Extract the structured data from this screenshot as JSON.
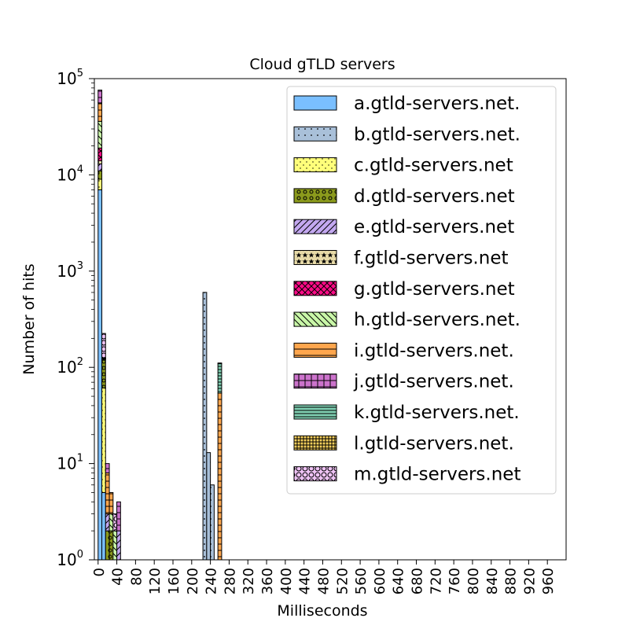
{
  "chart_data": {
    "type": "bar",
    "title": "Cloud gTLD servers",
    "xlabel": "Milliseconds",
    "ylabel": "Number of hits",
    "yscale": "log",
    "ylim": [
      1,
      100000
    ],
    "xlim": [
      -8,
      1000
    ],
    "bin_width": 8,
    "x_ticks": [
      "0",
      "40",
      "80",
      "120",
      "160",
      "200",
      "240",
      "280",
      "320",
      "360",
      "400",
      "440",
      "480",
      "520",
      "560",
      "600",
      "640",
      "680",
      "720",
      "760",
      "800",
      "840",
      "880",
      "920",
      "960"
    ],
    "y_ticks": [
      {
        "base": "10",
        "exp": "0"
      },
      {
        "base": "10",
        "exp": "1"
      },
      {
        "base": "10",
        "exp": "2"
      },
      {
        "base": "10",
        "exp": "3"
      },
      {
        "base": "10",
        "exp": "4"
      },
      {
        "base": "10",
        "exp": "5"
      }
    ],
    "grid": false,
    "stacked": true,
    "legend_position": "top-right",
    "series": [
      {
        "name": "a.gtld-servers.net.",
        "color": "#7abfff",
        "pattern": "none",
        "points": [
          {
            "x": 0,
            "value": 7000
          },
          {
            "x": 8,
            "value": 4
          }
        ]
      },
      {
        "name": "b.gtld-servers.net.",
        "color": "#a9c0d9",
        "pattern": "dots-sparse",
        "points": [
          {
            "x": 224,
            "value": 600
          },
          {
            "x": 232,
            "value": 12
          },
          {
            "x": 240,
            "value": 5
          }
        ]
      },
      {
        "name": "c.gtld-servers.net",
        "color": "#ffff7a",
        "pattern": "dots-dense",
        "points": [
          {
            "x": 0,
            "value": 2000
          },
          {
            "x": 8,
            "value": 56
          }
        ]
      },
      {
        "name": "d.gtld-servers.net",
        "color": "#8b9a1c",
        "pattern": "circles-small",
        "points": [
          {
            "x": 0,
            "value": 2000
          },
          {
            "x": 8,
            "value": 60
          },
          {
            "x": 16,
            "value": 1
          },
          {
            "x": 24,
            "value": 1
          }
        ]
      },
      {
        "name": "e.gtld-servers.net",
        "color": "#c3a8f0",
        "pattern": "diagonal-forward",
        "points": [
          {
            "x": 0,
            "value": 2000
          },
          {
            "x": 16,
            "value": 1
          },
          {
            "x": 40,
            "value": 1
          }
        ]
      },
      {
        "name": "f.gtld-servers.net",
        "color": "#e8dba8",
        "pattern": "stars",
        "points": [
          {
            "x": 0,
            "value": 1000
          },
          {
            "x": 8,
            "value": 1
          }
        ]
      },
      {
        "name": "g.gtld-servers.net",
        "color": "#ff0a87",
        "pattern": "cross",
        "points": [
          {
            "x": 0,
            "value": 5000
          }
        ]
      },
      {
        "name": "h.gtld-servers.net.",
        "color": "#c9f7a8",
        "pattern": "diagonal-back",
        "points": [
          {
            "x": 0,
            "value": 17000
          },
          {
            "x": 8,
            "value": 1
          },
          {
            "x": 24,
            "value": 1
          },
          {
            "x": 32,
            "value": 1
          }
        ]
      },
      {
        "name": "i.gtld-servers.net.",
        "color": "#ffa64d",
        "pattern": "horizontal",
        "points": [
          {
            "x": 0,
            "value": 20000
          },
          {
            "x": 16,
            "value": 5
          },
          {
            "x": 24,
            "value": 2
          },
          {
            "x": 256,
            "value": 53
          }
        ]
      },
      {
        "name": "j.gtld-servers.net.",
        "color": "#cc73cc",
        "pattern": "grid",
        "points": [
          {
            "x": 0,
            "value": 20000
          },
          {
            "x": 8,
            "value": 2
          },
          {
            "x": 16,
            "value": 2
          },
          {
            "x": 40,
            "value": 2
          }
        ]
      },
      {
        "name": "k.gtld-servers.net.",
        "color": "#7fcfb2",
        "pattern": "horizontal-dense",
        "points": [
          {
            "x": 256,
            "value": 55
          }
        ]
      },
      {
        "name": "l.gtld-servers.net.",
        "color": "#f5cf5c",
        "pattern": "grid-dense",
        "points": [
          {
            "x": 256,
            "value": 2
          }
        ]
      },
      {
        "name": "m.gtld-servers.net",
        "color": "#efc3f5",
        "pattern": "circles-large",
        "points": [
          {
            "x": 8,
            "value": 100
          },
          {
            "x": 32,
            "value": 1
          }
        ]
      }
    ]
  }
}
